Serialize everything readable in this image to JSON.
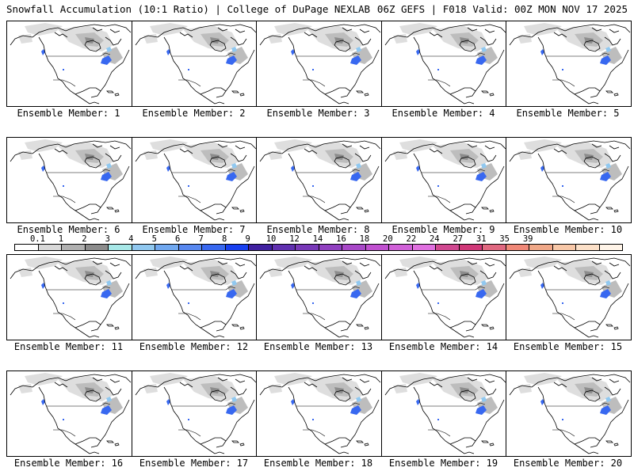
{
  "header": {
    "title": "Snowfall Accumulation (10:1 Ratio) | College of DuPage NEXLAB",
    "valid": "06Z GEFS | F018 Valid: 00Z MON NOV 17 2025"
  },
  "members": [
    {
      "label": "Ensemble Member: 1"
    },
    {
      "label": "Ensemble Member: 2"
    },
    {
      "label": "Ensemble Member: 3"
    },
    {
      "label": "Ensemble Member: 4"
    },
    {
      "label": "Ensemble Member: 5"
    },
    {
      "label": "Ensemble Member: 6"
    },
    {
      "label": "Ensemble Member: 7"
    },
    {
      "label": "Ensemble Member: 8"
    },
    {
      "label": "Ensemble Member: 9"
    },
    {
      "label": "Ensemble Member: 10"
    },
    {
      "label": "Ensemble Member: 11"
    },
    {
      "label": "Ensemble Member: 12"
    },
    {
      "label": "Ensemble Member: 13"
    },
    {
      "label": "Ensemble Member: 14"
    },
    {
      "label": "Ensemble Member: 15"
    },
    {
      "label": "Ensemble Member: 16"
    },
    {
      "label": "Ensemble Member: 17"
    },
    {
      "label": "Ensemble Member: 18"
    },
    {
      "label": "Ensemble Member: 19"
    },
    {
      "label": "Ensemble Member: 20",
      "selected": true
    }
  ],
  "legend": {
    "labels": [
      "0.1",
      "1",
      "2",
      "3",
      "4",
      "5",
      "6",
      "7",
      "8",
      "9",
      "10",
      "12",
      "14",
      "16",
      "18",
      "20",
      "22",
      "24",
      "27",
      "31",
      "35",
      "39"
    ],
    "colors": [
      "#ffffff",
      "#d8d8d8",
      "#b0b0b0",
      "#8c8c8c",
      "#a8e8e8",
      "#90c8f0",
      "#70a8f0",
      "#5888f0",
      "#3868f0",
      "#1840f0",
      "#4020a0",
      "#6030b0",
      "#7838b8",
      "#9040c0",
      "#a848c8",
      "#c050d0",
      "#d060d8",
      "#e070e0",
      "#d04890",
      "#d03878",
      "#e06880",
      "#f08878",
      "#f0a888",
      "#f8c8a8",
      "#fce0c8",
      "#fff4e8"
    ]
  },
  "map_colors": {
    "snow_light": "#dedede",
    "snow_mid": "#bdbdbd",
    "snow_dark": "#8c8c8c",
    "snow_blue": "#3868f0",
    "snow_cyan": "#90c8f0",
    "coastline": "#000000"
  }
}
